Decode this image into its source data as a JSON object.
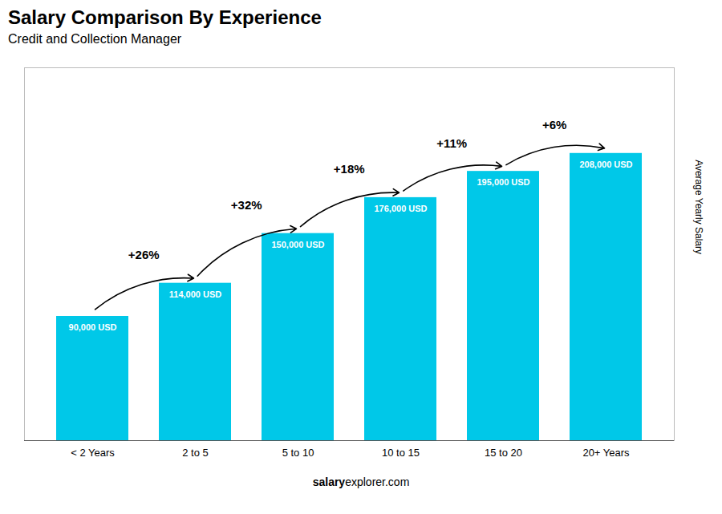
{
  "chart_data": {
    "type": "bar",
    "title": "Salary Comparison By Experience",
    "subtitle": "Credit and Collection Manager",
    "ylabel": "Average Yearly Salary",
    "categories": [
      "< 2 Years",
      "2 to 5",
      "5 to 10",
      "10 to 15",
      "15 to 20",
      "20+ Years"
    ],
    "values": [
      90000,
      114000,
      150000,
      176000,
      195000,
      208000
    ],
    "value_labels": [
      "90,000 USD",
      "114,000 USD",
      "150,000 USD",
      "176,000 USD",
      "195,000 USD",
      "208,000 USD"
    ],
    "data_labels": true,
    "annotations": [
      "+26%",
      "+32%",
      "+18%",
      "+11%",
      "+6%"
    ],
    "caption": [
      "salary",
      "explorer.com"
    ],
    "color": "#00c8e8",
    "ylim": [
      0,
      270000
    ],
    "yticks": [],
    "tick_labels": "x"
  }
}
